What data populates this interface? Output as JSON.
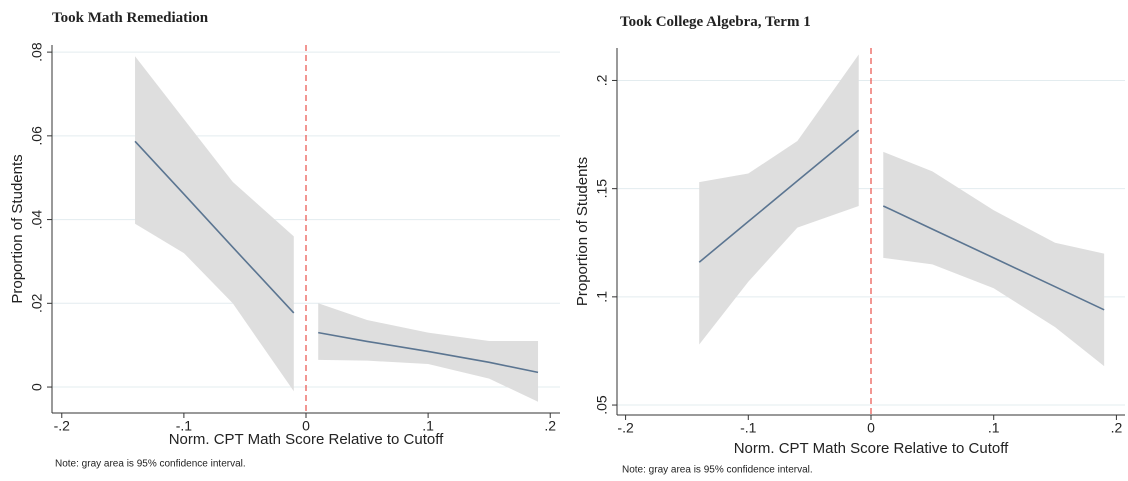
{
  "chart_data": [
    {
      "type": "line",
      "title": "Took Math  Remediation",
      "x_label": "Norm. CPT Math Score Relative to Cutoff",
      "y_label": "Proportion of Students",
      "note": "Note: gray area is 95% confidence interval.",
      "xlim": [
        -0.208,
        0.208
      ],
      "ylim": [
        -0.0062,
        0.0817
      ],
      "xticks": [
        {
          "value": -0.2,
          "label": "-.2"
        },
        {
          "value": -0.1,
          "label": "-.1"
        },
        0,
        {
          "value": 0.1,
          "label": ".1"
        },
        {
          "value": 0.2,
          "label": ".2"
        }
      ],
      "yticks": [
        0,
        {
          "value": 0.02,
          "label": ".02"
        },
        {
          "value": 0.04,
          "label": ".04"
        },
        {
          "value": 0.06,
          "label": ".06"
        },
        {
          "value": 0.08,
          "label": ".08"
        }
      ],
      "grid": true,
      "cutoff": 0,
      "cutoff_color": "#e8504a",
      "line_color": "#5b7591",
      "band_color": "#dedede",
      "series": [
        {
          "x": [
            -0.14,
            -0.1,
            -0.06,
            -0.01
          ],
          "values": [
            0.0587,
            0.0461,
            0.0334,
            0.0177
          ],
          "upper": [
            0.079,
            0.064,
            0.049,
            0.036
          ],
          "lower": [
            0.039,
            0.032,
            0.02,
            -0.001
          ]
        },
        {
          "x": [
            0.01,
            0.05,
            0.1,
            0.15,
            0.19
          ],
          "values": [
            0.013,
            0.0109,
            0.0085,
            0.0059,
            0.0035
          ],
          "upper": [
            0.02,
            0.016,
            0.013,
            0.011,
            0.011
          ],
          "lower": [
            0.0065,
            0.0063,
            0.0055,
            0.002,
            -0.0035
          ]
        }
      ]
    },
    {
      "type": "line",
      "title": "Took College Algebra, Term 1",
      "x_label": "Norm. CPT Math Score Relative to Cutoff",
      "y_label": "Proportion of Students",
      "note": "Note: gray area is 95% confidence interval.",
      "xlim": [
        -0.207,
        0.207
      ],
      "ylim": [
        0.0454,
        0.215
      ],
      "xticks": [
        {
          "value": -0.2,
          "label": "-.2"
        },
        {
          "value": -0.1,
          "label": "-.1"
        },
        0,
        {
          "value": 0.1,
          "label": ".1"
        },
        {
          "value": 0.2,
          "label": ".2"
        }
      ],
      "yticks": [
        {
          "value": 0.05,
          "label": ".05"
        },
        {
          "value": 0.1,
          "label": ".1"
        },
        {
          "value": 0.15,
          "label": ".15"
        },
        {
          "value": 0.2,
          "label": ".2"
        }
      ],
      "grid": true,
      "cutoff": 0,
      "cutoff_color": "#e8504a",
      "line_color": "#5b7591",
      "band_color": "#dedede",
      "series": [
        {
          "x": [
            -0.14,
            -0.1,
            -0.06,
            -0.01
          ],
          "values": [
            0.116,
            0.1348,
            0.1536,
            0.177
          ],
          "upper": [
            0.153,
            0.157,
            0.172,
            0.212
          ],
          "lower": [
            0.078,
            0.107,
            0.132,
            0.142
          ]
        },
        {
          "x": [
            0.01,
            0.05,
            0.1,
            0.15,
            0.19
          ],
          "values": [
            0.142,
            0.1313,
            0.118,
            0.1047,
            0.094
          ],
          "upper": [
            0.167,
            0.158,
            0.14,
            0.125,
            0.12
          ],
          "lower": [
            0.118,
            0.115,
            0.104,
            0.086,
            0.068
          ]
        }
      ]
    }
  ]
}
